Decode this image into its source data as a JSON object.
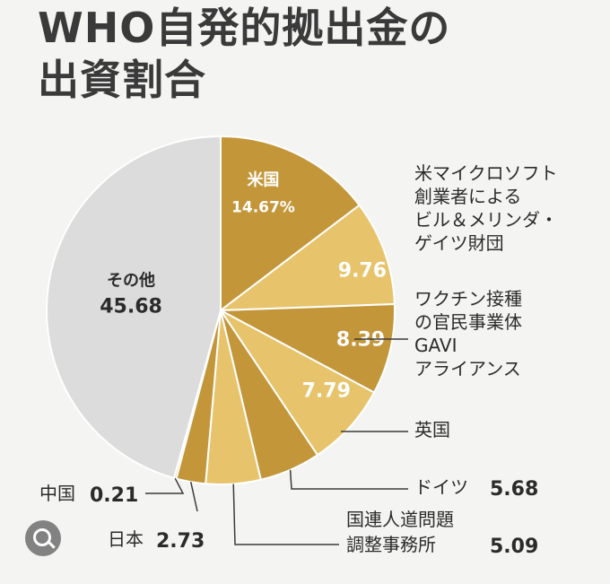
{
  "title_lines": [
    "WHO自発的拠出金の",
    "出資割合"
  ],
  "chart_data": {
    "type": "pie",
    "title": "WHO自発的拠出金の出資割合",
    "slices": [
      {
        "label_lines": [
          "米国"
        ],
        "value": 14.67,
        "value_text": "14.67%",
        "color": "#c4963a"
      },
      {
        "label_lines": [
          "米マイクロソフト",
          "創業者による",
          "ビル＆メリンダ・",
          "ゲイツ財団"
        ],
        "value": 9.76,
        "value_text": "9.76",
        "color": "#e7c46c"
      },
      {
        "label_lines": [
          "ワクチン接種",
          "の官民事業体",
          "GAVI",
          "アライアンス"
        ],
        "value": 8.39,
        "value_text": "8.39",
        "color": "#c4963a"
      },
      {
        "label_lines": [
          "英国"
        ],
        "value": 7.79,
        "value_text": "7.79",
        "color": "#e7c46c"
      },
      {
        "label_lines": [
          "ドイツ"
        ],
        "value": 5.68,
        "value_text": "5.68",
        "color": "#c4963a"
      },
      {
        "label_lines": [
          "国連人道問題",
          "調整事務所"
        ],
        "value": 5.09,
        "value_text": "5.09",
        "color": "#e7c46c"
      },
      {
        "label_lines": [
          "日本"
        ],
        "value": 2.73,
        "value_text": "2.73",
        "color": "#c4963a"
      },
      {
        "label_lines": [
          "中国"
        ],
        "value": 0.21,
        "value_text": "0.21",
        "color": "#e7c46c"
      },
      {
        "label_lines": [
          "その他"
        ],
        "value": 45.68,
        "value_text": "45.68",
        "color": "#dcdcdc"
      }
    ]
  },
  "colors": {
    "leader": "#3a3a3a",
    "inside_text_light": "#ffffff",
    "inside_text_dark": "#2b2b2b",
    "background": "#f4f4f2"
  },
  "icons": {
    "overlay": "visual-search-icon"
  }
}
